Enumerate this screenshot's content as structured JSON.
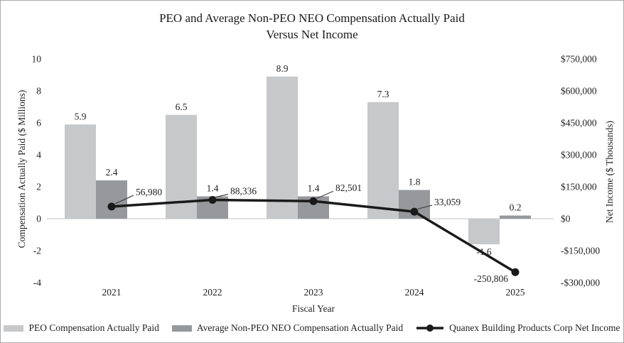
{
  "title": {
    "line1": "PEO and Average Non-PEO NEO Compensation Actually Paid",
    "line2": "Versus Net Income"
  },
  "chart_data": {
    "type": "combo-bar-line",
    "title": "PEO and Average Non-PEO NEO Compensation Actually Paid Versus Net Income",
    "categories": [
      "2021",
      "2022",
      "2023",
      "2024",
      "2025"
    ],
    "x_axis_title": "Fiscal Year",
    "left_axis": {
      "title": "Compensation Actually Paid ($ Millions)",
      "min": -4,
      "max": 10,
      "tick_values": [
        10,
        8,
        6,
        4,
        2,
        0,
        -2,
        -4
      ],
      "tick_labels": [
        "10",
        "8",
        "6",
        "4",
        "2",
        "0",
        "-2",
        "-4"
      ]
    },
    "right_axis": {
      "title": "Net Income ($ Thousands)",
      "min": -300000,
      "max": 750000,
      "tick_values": [
        750000,
        600000,
        450000,
        300000,
        150000,
        0,
        -150000,
        -300000
      ],
      "tick_labels": [
        "$750,000",
        "$600,000",
        "$450,000",
        "$300,000",
        "$150,000",
        "$0",
        "-$150,000",
        "-$300,000"
      ]
    },
    "series": [
      {
        "name": "PEO Compensation Actually Paid",
        "chart_type": "bar",
        "axis": "left",
        "color": "#c7c8ca",
        "values": [
          5.9,
          6.5,
          8.9,
          7.3,
          -1.6
        ],
        "data_labels": [
          "5.9",
          "6.5",
          "8.9",
          "7.3",
          "-1.6"
        ]
      },
      {
        "name": "Average Non-PEO NEO Compensation Actually Paid",
        "chart_type": "bar",
        "axis": "left",
        "color": "#97989b",
        "values": [
          2.4,
          1.4,
          1.4,
          1.8,
          0.2
        ],
        "data_labels": [
          "2.4",
          "1.4",
          "1.4",
          "1.8",
          "0.2"
        ]
      },
      {
        "name": "Quanex Building Products Corp Net Income",
        "chart_type": "line",
        "axis": "right",
        "color": "#1a1a1a",
        "values": [
          56980,
          88336,
          82501,
          33059,
          -250806
        ],
        "data_labels": [
          "56,980",
          "88,336",
          "82,501",
          "33,059",
          "-250,806"
        ]
      }
    ],
    "legend_position": "bottom",
    "gridlines": "zero-line-only",
    "colors": {
      "peo_bar": "#c7c8ca",
      "non_peo_bar": "#97989b",
      "net_income_line": "#1a1a1a",
      "zero_line": "#d6d6d6"
    }
  }
}
